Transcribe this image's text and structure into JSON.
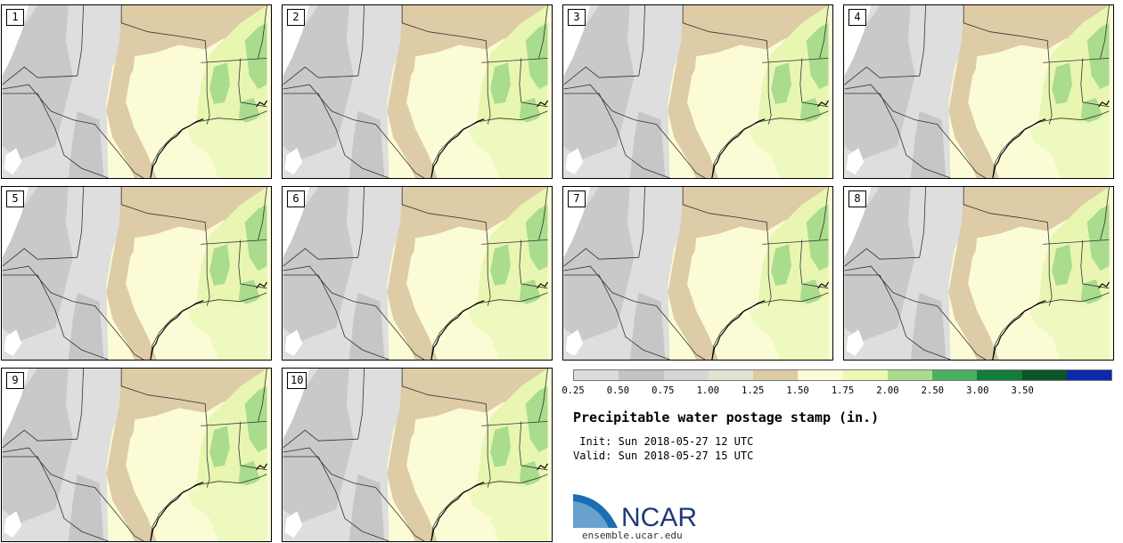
{
  "figure": {
    "title": "Precipitable water postage stamp (in.)",
    "init_label": " Init:",
    "init_value": "Sun 2018-05-27 12 UTC",
    "valid_label": "Valid:",
    "valid_value": "Sun 2018-05-27 15 UTC",
    "logo_text": "NCAR",
    "logo_url": "ensemble.ucar.edu"
  },
  "colorbar": {
    "ticks": [
      "0.25",
      "0.50",
      "0.75",
      "1.00",
      "1.25",
      "1.50",
      "1.75",
      "2.00",
      "2.50",
      "3.00",
      "3.50"
    ],
    "colors": [
      "#dcdcdc",
      "#c4c4c4",
      "#d6d6d6",
      "#e2e2d3",
      "#dccba4",
      "#fbfbd6",
      "#ecf8b4",
      "#a8dc8c",
      "#4aaf62",
      "#157c3a",
      "#0b5526",
      "#0c2aa8"
    ]
  },
  "members": [
    {
      "label": "1"
    },
    {
      "label": "2"
    },
    {
      "label": "3"
    },
    {
      "label": "4"
    },
    {
      "label": "5"
    },
    {
      "label": "6"
    },
    {
      "label": "7"
    },
    {
      "label": "8"
    },
    {
      "label": "9"
    },
    {
      "label": "10"
    }
  ]
}
